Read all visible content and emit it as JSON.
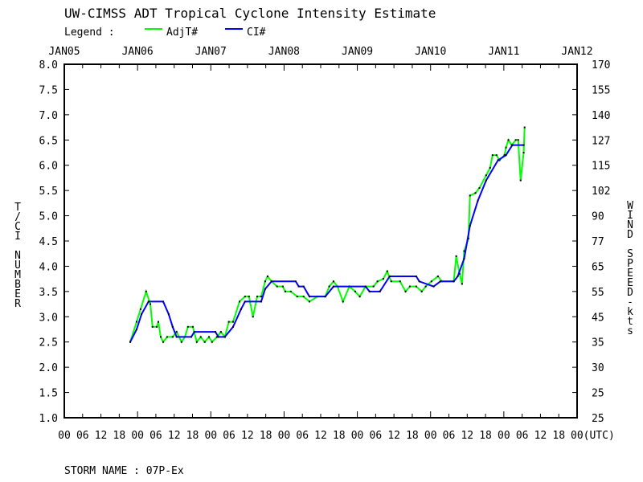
{
  "chart_data": {
    "type": "line",
    "title": "UW-CIMSS ADT Tropical Cyclone Intensity Estimate",
    "legend_label": "Legend :",
    "legend_placement": "top-left",
    "ylabel": "T/CI NUMBER",
    "y2label": "WIND SPEED-kts",
    "xlabel_suffix": "00(UTC)",
    "ylim": [
      1.0,
      8.0
    ],
    "xlim_hours": [
      0,
      168
    ],
    "top_ticks": [
      "JAN05",
      "JAN06",
      "JAN07",
      "JAN08",
      "JAN09",
      "JAN10",
      "JAN11",
      "JAN12"
    ],
    "hour_ticks": [
      "00",
      "06",
      "12",
      "18"
    ],
    "y_ticks": [
      "1.0",
      "1.5",
      "2.0",
      "2.5",
      "3.0",
      "3.5",
      "4.0",
      "4.5",
      "5.0",
      "5.5",
      "6.0",
      "6.5",
      "7.0",
      "7.5",
      "8.0"
    ],
    "y2_ticks": [
      "25",
      "25",
      "30",
      "35",
      "45",
      "55",
      "65",
      "77",
      "90",
      "102",
      "115",
      "127",
      "140",
      "155",
      "170"
    ],
    "series": [
      {
        "name": "AdjT#",
        "color": "#00ff00",
        "x_hours": [
          21.6,
          23.7,
          25,
          26.8,
          28.2,
          28.9,
          30.3,
          30.8,
          31.6,
          32.4,
          33.7,
          35.5,
          36.8,
          38.4,
          39.5,
          40.5,
          42.1,
          43.4,
          44.7,
          46,
          47.4,
          48.4,
          50,
          51.3,
          52.6,
          53.9,
          55.3,
          57.4,
          59.2,
          60.5,
          61.8,
          63.2,
          64.5,
          65.8,
          66.6,
          67.9,
          69.7,
          71.6,
          72.4,
          74.2,
          76.3,
          78.4,
          80.3,
          82.9,
          85.5,
          86.8,
          88.2,
          89.5,
          91.3,
          93.4,
          95.3,
          96.8,
          98.7,
          101.3,
          102.6,
          104.5,
          105.8,
          107.1,
          110,
          111.8,
          113.2,
          115.3,
          117.1,
          118.4,
          120.3,
          122.4,
          123.7,
          127.6,
          128.4,
          129.5,
          130.3,
          131,
          132.4,
          132.9,
          134.7,
          136,
          138.2,
          139.5,
          140.3,
          141.6,
          142.6,
          144.2,
          144.7,
          145.5,
          146.6,
          147.9,
          148.7,
          149.5,
          150.5,
          150.8
        ],
        "values": [
          2.5,
          2.9,
          3.15,
          3.5,
          3.25,
          2.8,
          2.8,
          2.9,
          2.6,
          2.5,
          2.6,
          2.6,
          2.7,
          2.5,
          2.6,
          2.8,
          2.8,
          2.5,
          2.6,
          2.5,
          2.6,
          2.5,
          2.6,
          2.7,
          2.6,
          2.9,
          2.9,
          3.3,
          3.4,
          3.4,
          3.0,
          3.4,
          3.4,
          3.7,
          3.8,
          3.7,
          3.6,
          3.6,
          3.5,
          3.5,
          3.4,
          3.4,
          3.3,
          3.4,
          3.4,
          3.6,
          3.7,
          3.6,
          3.3,
          3.6,
          3.5,
          3.4,
          3.6,
          3.6,
          3.7,
          3.75,
          3.9,
          3.7,
          3.7,
          3.5,
          3.6,
          3.6,
          3.5,
          3.6,
          3.7,
          3.8,
          3.7,
          3.7,
          4.2,
          3.85,
          3.65,
          4.3,
          4.55,
          5.4,
          5.45,
          5.55,
          5.8,
          5.95,
          6.2,
          6.2,
          6.1,
          6.2,
          6.35,
          6.5,
          6.4,
          6.5,
          6.5,
          5.7,
          6.25,
          6.75
        ]
      },
      {
        "name": "CI#",
        "color": "#0000ff",
        "x_hours": [
          21.6,
          23.7,
          25.3,
          27.6,
          32.4,
          34.2,
          35.5,
          36.8,
          41.6,
          42.6,
          49.5,
          50.5,
          52.6,
          55.3,
          57.9,
          59.2,
          64.5,
          65.8,
          67.9,
          75.8,
          76.8,
          78.4,
          80.3,
          85.5,
          88.2,
          98.7,
          100,
          103.4,
          106.6,
          115.3,
          116.3,
          121,
          123.2,
          127.6,
          128.9,
          131,
          132.9,
          135.5,
          138.2,
          142.1,
          144.7,
          146.8,
          150.5
        ],
        "values": [
          2.5,
          2.75,
          3.05,
          3.3,
          3.3,
          3.05,
          2.8,
          2.6,
          2.6,
          2.7,
          2.7,
          2.6,
          2.6,
          2.8,
          3.15,
          3.3,
          3.3,
          3.55,
          3.7,
          3.7,
          3.6,
          3.6,
          3.4,
          3.4,
          3.6,
          3.6,
          3.5,
          3.5,
          3.8,
          3.8,
          3.7,
          3.6,
          3.7,
          3.7,
          3.8,
          4.15,
          4.8,
          5.3,
          5.7,
          6.1,
          6.2,
          6.4,
          6.4
        ]
      }
    ]
  },
  "footer": {
    "storm_name": "STORM NAME : 07P-Ex"
  }
}
